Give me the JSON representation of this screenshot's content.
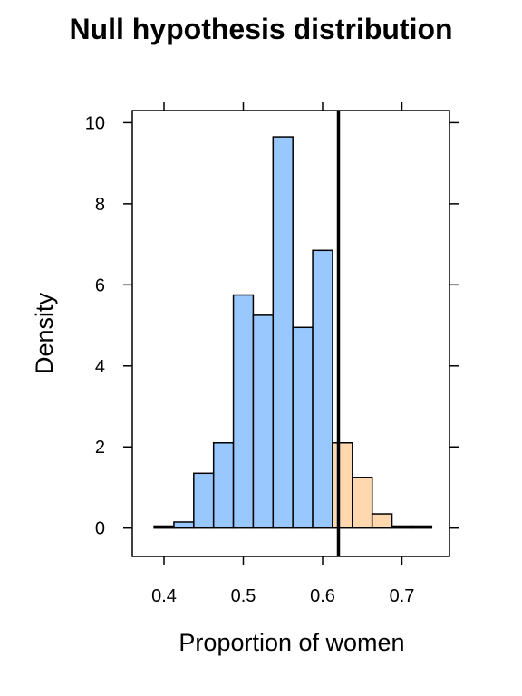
{
  "chart_data": {
    "type": "bar",
    "title": "Null hypothesis distribution",
    "xlabel": "Proportion of women",
    "ylabel": "Density",
    "xlim": [
      0.36,
      0.76
    ],
    "ylim": [
      -0.7,
      10.3
    ],
    "x_ticks": [
      {
        "value": 0.4,
        "label": "0.4"
      },
      {
        "value": 0.5,
        "label": "0.5"
      },
      {
        "value": 0.6,
        "label": "0.6"
      },
      {
        "value": 0.7,
        "label": "0.7"
      }
    ],
    "y_ticks": [
      {
        "value": 0,
        "label": "0"
      },
      {
        "value": 2,
        "label": "2"
      },
      {
        "value": 4,
        "label": "4"
      },
      {
        "value": 6,
        "label": "6"
      },
      {
        "value": 8,
        "label": "8"
      },
      {
        "value": 10,
        "label": "10"
      }
    ],
    "observed_value": 0.62,
    "bins": [
      {
        "x0": 0.3875,
        "x1": 0.4125,
        "density": 0.05,
        "region": "below"
      },
      {
        "x0": 0.4125,
        "x1": 0.4375,
        "density": 0.15,
        "region": "below"
      },
      {
        "x0": 0.4375,
        "x1": 0.4625,
        "density": 1.35,
        "region": "below"
      },
      {
        "x0": 0.4625,
        "x1": 0.4875,
        "density": 2.1,
        "region": "below"
      },
      {
        "x0": 0.4875,
        "x1": 0.5125,
        "density": 5.75,
        "region": "below"
      },
      {
        "x0": 0.5125,
        "x1": 0.5375,
        "density": 5.25,
        "region": "below"
      },
      {
        "x0": 0.5375,
        "x1": 0.5625,
        "density": 9.65,
        "region": "below"
      },
      {
        "x0": 0.5625,
        "x1": 0.5875,
        "density": 4.95,
        "region": "below"
      },
      {
        "x0": 0.5875,
        "x1": 0.6125,
        "density": 6.85,
        "region": "below"
      },
      {
        "x0": 0.6125,
        "x1": 0.6375,
        "density": 2.1,
        "region": "above"
      },
      {
        "x0": 0.6375,
        "x1": 0.6625,
        "density": 1.25,
        "region": "above"
      },
      {
        "x0": 0.6625,
        "x1": 0.6875,
        "density": 0.35,
        "region": "above"
      },
      {
        "x0": 0.6875,
        "x1": 0.7125,
        "density": 0.05,
        "region": "above"
      },
      {
        "x0": 0.7125,
        "x1": 0.7375,
        "density": 0.05,
        "region": "above"
      }
    ],
    "colors": {
      "below": "#99c8ff",
      "above": "#ffd8b0",
      "edge": "#000000"
    },
    "grid": false,
    "legend": "none"
  }
}
